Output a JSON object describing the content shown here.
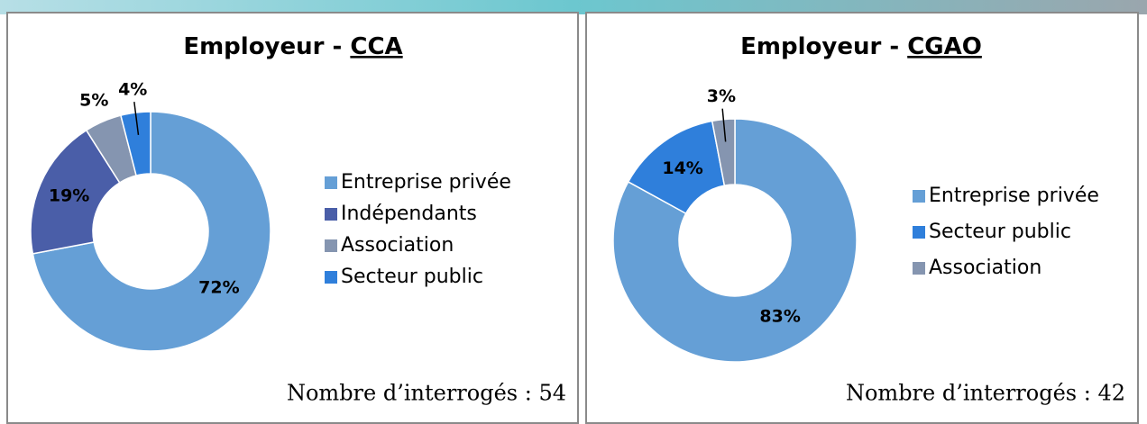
{
  "chart_data": [
    {
      "type": "donut",
      "title": "Employeur -",
      "group": "CCA",
      "categories": [
        "Entreprise privée",
        "Indépendants",
        "Association",
        "Secteur public"
      ],
      "values": [
        72,
        19,
        5,
        4
      ],
      "value_labels": [
        "72%",
        "19%",
        "5%",
        "4%"
      ],
      "colors": [
        "#659fd6",
        "#4a5ea8",
        "#8595b0",
        "#2f7fdb"
      ],
      "legend": "right",
      "annotation": "Nombre d’interrogés : 54"
    },
    {
      "type": "donut",
      "title": "Employeur -",
      "group": "CGAO",
      "categories": [
        "Entreprise privée",
        "Secteur public",
        "Association"
      ],
      "values": [
        83,
        14,
        3
      ],
      "value_labels": [
        "83%",
        "14%",
        "3%"
      ],
      "colors": [
        "#659fd6",
        "#2f7fdb",
        "#8595b0"
      ],
      "legend": "right",
      "annotation": "Nombre d’interrogés : 42"
    }
  ]
}
